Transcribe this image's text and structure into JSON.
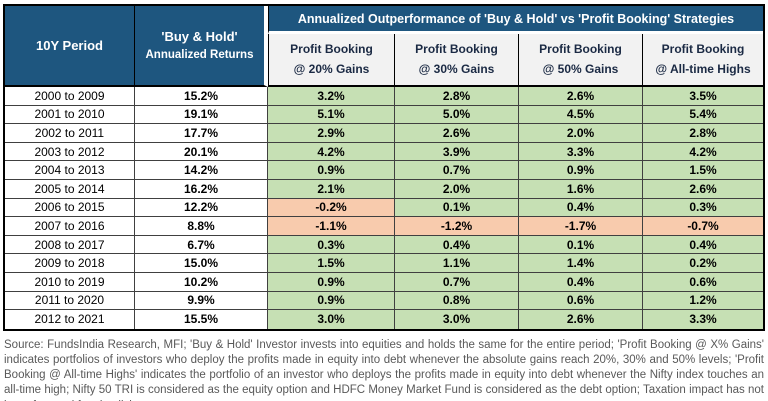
{
  "table": {
    "corner_header": "10Y Period",
    "buy_hold_header": {
      "line1": "'Buy & Hold'",
      "line2": "Annualized Returns"
    },
    "span_header": "Annualized Outperformance of 'Buy & Hold' vs 'Profit Booking' Strategies",
    "sub_headers": [
      {
        "line1": "Profit Booking",
        "line2": "@ 20% Gains"
      },
      {
        "line1": "Profit Booking",
        "line2": "@ 30% Gains"
      },
      {
        "line1": "Profit Booking",
        "line2": "@ 50% Gains"
      },
      {
        "line1": "Profit Booking",
        "line2": "@ All-time Highs"
      }
    ],
    "rows": [
      {
        "period": "2000 to 2009",
        "buy_hold": "15.2%",
        "outperformance": [
          "3.2%",
          "2.8%",
          "2.6%",
          "3.5%"
        ]
      },
      {
        "period": "2001 to 2010",
        "buy_hold": "19.1%",
        "outperformance": [
          "5.1%",
          "5.0%",
          "4.5%",
          "5.4%"
        ]
      },
      {
        "period": "2002 to 2011",
        "buy_hold": "17.7%",
        "outperformance": [
          "2.9%",
          "2.6%",
          "2.0%",
          "2.8%"
        ]
      },
      {
        "period": "2003 to 2012",
        "buy_hold": "20.1%",
        "outperformance": [
          "4.2%",
          "3.9%",
          "3.3%",
          "4.2%"
        ]
      },
      {
        "period": "2004 to 2013",
        "buy_hold": "14.2%",
        "outperformance": [
          "0.9%",
          "0.7%",
          "0.9%",
          "1.5%"
        ]
      },
      {
        "period": "2005 to 2014",
        "buy_hold": "16.2%",
        "outperformance": [
          "2.1%",
          "2.0%",
          "1.6%",
          "2.6%"
        ]
      },
      {
        "period": "2006 to 2015",
        "buy_hold": "12.2%",
        "outperformance": [
          "-0.2%",
          "0.1%",
          "0.4%",
          "0.3%"
        ]
      },
      {
        "period": "2007 to 2016",
        "buy_hold": "8.8%",
        "outperformance": [
          "-1.1%",
          "-1.2%",
          "-1.7%",
          "-0.7%"
        ]
      },
      {
        "period": "2008 to 2017",
        "buy_hold": "6.7%",
        "outperformance": [
          "0.3%",
          "0.4%",
          "0.1%",
          "0.4%"
        ]
      },
      {
        "period": "2009 to 2018",
        "buy_hold": "15.0%",
        "outperformance": [
          "1.5%",
          "1.1%",
          "1.4%",
          "0.2%"
        ]
      },
      {
        "period": "2010 to 2019",
        "buy_hold": "10.2%",
        "outperformance": [
          "0.9%",
          "0.7%",
          "0.4%",
          "0.6%"
        ]
      },
      {
        "period": "2011 to 2020",
        "buy_hold": "9.9%",
        "outperformance": [
          "0.9%",
          "0.8%",
          "0.6%",
          "1.2%"
        ]
      },
      {
        "period": "2012 to 2021",
        "buy_hold": "15.5%",
        "outperformance": [
          "3.0%",
          "3.0%",
          "2.6%",
          "3.3%"
        ]
      }
    ]
  },
  "footer_note": "Source: FundsIndia Research, MFI; 'Buy & Hold' Investor invests into equities and holds the same for the entire period; 'Profit Booking @ X% Gains' indicates portfolios of investors who deploy the profits made in equity into debt whenever the absolute gains reach 20%, 30% and 50% levels; 'Profit Booking @ All-time Highs' indicates the portfolio of an investor who deploys the profits made in equity into debt whenever the Nifty index touches an all-time high; Nifty 50 TRI is considered as the equity option and HDFC Money Market Fund is considered as the debt option; Taxation impact has not been factored for simplicity.",
  "colors": {
    "header_navy": "#1e567f",
    "positive_green": "#c6e0b4",
    "negative_orange": "#f8cbad",
    "subheader_bg": "#f2f2f2"
  },
  "chart_data": {
    "type": "table",
    "title": "Annualized Outperformance of 'Buy & Hold' vs 'Profit Booking' Strategies",
    "units": "%",
    "categories": [
      "2000 to 2009",
      "2001 to 2010",
      "2002 to 2011",
      "2003 to 2012",
      "2004 to 2013",
      "2005 to 2014",
      "2006 to 2015",
      "2007 to 2016",
      "2008 to 2017",
      "2009 to 2018",
      "2010 to 2019",
      "2011 to 2020",
      "2012 to 2021"
    ],
    "series": [
      {
        "name": "'Buy & Hold' Annualized Returns",
        "values": [
          15.2,
          19.1,
          17.7,
          20.1,
          14.2,
          16.2,
          12.2,
          8.8,
          6.7,
          15.0,
          10.2,
          9.9,
          15.5
        ]
      },
      {
        "name": "Profit Booking @ 20% Gains",
        "values": [
          3.2,
          5.1,
          2.9,
          4.2,
          0.9,
          2.1,
          -0.2,
          -1.1,
          0.3,
          1.5,
          0.9,
          0.9,
          3.0
        ]
      },
      {
        "name": "Profit Booking @ 30% Gains",
        "values": [
          2.8,
          5.0,
          2.6,
          3.9,
          0.7,
          2.0,
          0.1,
          -1.2,
          0.4,
          1.1,
          0.7,
          0.8,
          3.0
        ]
      },
      {
        "name": "Profit Booking @ 50% Gains",
        "values": [
          2.6,
          4.5,
          2.0,
          3.3,
          0.9,
          1.6,
          0.4,
          -1.7,
          0.1,
          1.4,
          0.4,
          0.6,
          2.6
        ]
      },
      {
        "name": "Profit Booking @ All-time Highs",
        "values": [
          3.5,
          5.4,
          2.8,
          4.2,
          1.5,
          2.6,
          0.3,
          -0.7,
          0.4,
          0.2,
          0.6,
          1.2,
          3.3
        ]
      }
    ],
    "note": "Cells are shaded green for positive outperformance and salmon for negative outperformance"
  }
}
